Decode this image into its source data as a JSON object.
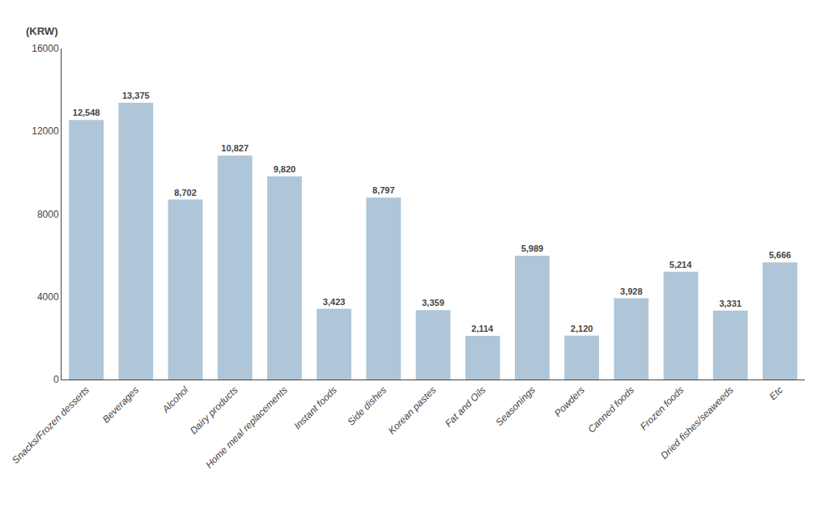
{
  "chart_data": {
    "type": "bar",
    "ylabel": "(KRW)",
    "categories": [
      "Snacks/Frozen desserts",
      "Beverages",
      "Alcohol",
      "Dairy products",
      "Home meal replacements",
      "Instant foods",
      "Side dishes",
      "Korean pastes",
      "Fat and Oils",
      "Seasonings",
      "Powders",
      "Canned foods",
      "Frozen foods",
      "Dried fishes/seaweeds",
      "Etc"
    ],
    "values": [
      12548,
      13375,
      8702,
      10827,
      9820,
      3423,
      8797,
      3359,
      2114,
      5989,
      2120,
      3928,
      5214,
      3331,
      5666
    ],
    "value_labels": [
      "12,548",
      "13,375",
      "8,702",
      "10,827",
      "9,820",
      "3,423",
      "8,797",
      "3,359",
      "2,114",
      "5,989",
      "2,120",
      "3,928",
      "5,214",
      "3,331",
      "5,666"
    ],
    "color": "#afc6d8",
    "ylim": [
      0,
      16000
    ],
    "yticks": [
      0,
      4000,
      8000,
      12000,
      16000
    ],
    "data_labels": true,
    "grid": false
  }
}
